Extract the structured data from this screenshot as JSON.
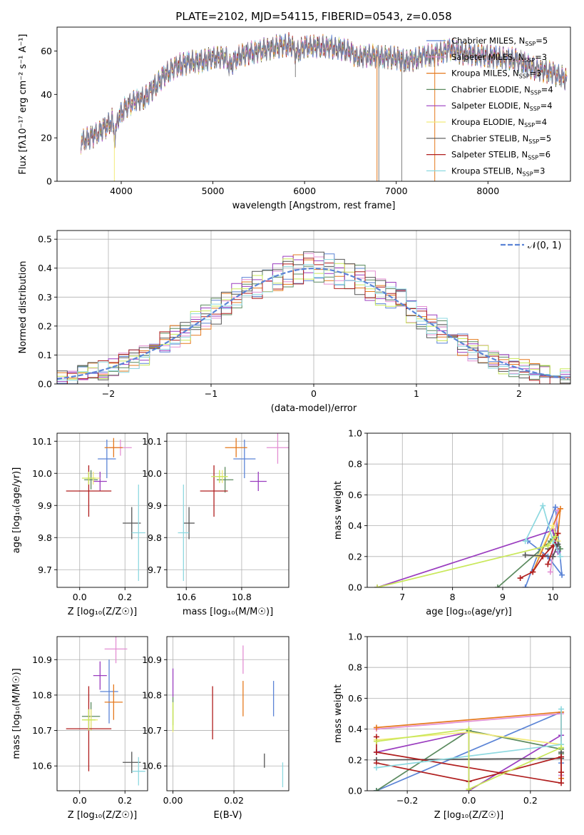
{
  "title": "PLATE=2102, MJD=54115, FIBERID=0543, z=0.058",
  "colors": [
    "#5b84d6",
    "#e38fd3",
    "#e5791d",
    "#5b8a5f",
    "#9a3cbf",
    "#f2ea7a",
    "#555555",
    "#b01e1e",
    "#8ed9e0",
    "#c9e85a"
  ],
  "legend": [
    {
      "model": "Chabrier MILES",
      "n": "5",
      "color": "#5b84d6"
    },
    {
      "model": "Salpeter MILES",
      "n": "3",
      "color": "#e38fd3"
    },
    {
      "model": "Kroupa MILES",
      "n": "3",
      "color": "#e5791d"
    },
    {
      "model": "Chabrier ELODIE",
      "n": "4",
      "color": "#5b8a5f"
    },
    {
      "model": "Salpeter ELODIE",
      "n": "4",
      "color": "#9a3cbf"
    },
    {
      "model": "Kroupa ELODIE",
      "n": "4",
      "color": "#f2ea7a"
    },
    {
      "model": "Chabrier STELIB",
      "n": "5",
      "color": "#555555"
    },
    {
      "model": "Salpeter STELIB",
      "n": "6",
      "color": "#b01e1e"
    },
    {
      "model": "Kroupa STELIB",
      "n": "3",
      "color": "#8ed9e0"
    }
  ],
  "chart_data": [
    {
      "type": "line",
      "xlabel": "wavelength [Angstrom, rest frame]",
      "ylabel": "Flux [fλ10⁻¹⁷ erg cm⁻² s⁻¹ A⁻¹]",
      "xlim": [
        3300,
        8900
      ],
      "ylim": [
        0,
        71
      ],
      "xticks": [
        4000,
        5000,
        6000,
        7000,
        8000
      ],
      "yticks": [
        0,
        20,
        40,
        60
      ],
      "continuum": [
        [
          3560,
          18
        ],
        [
          3700,
          21
        ],
        [
          3800,
          24
        ],
        [
          3900,
          28
        ],
        [
          3930,
          20
        ],
        [
          3970,
          30
        ],
        [
          4050,
          34
        ],
        [
          4150,
          37
        ],
        [
          4250,
          38
        ],
        [
          4350,
          43
        ],
        [
          4500,
          50
        ],
        [
          4600,
          53
        ],
        [
          4750,
          55
        ],
        [
          4850,
          55
        ],
        [
          5000,
          57
        ],
        [
          5150,
          57
        ],
        [
          5180,
          53
        ],
        [
          5300,
          58
        ],
        [
          5500,
          60
        ],
        [
          5700,
          62
        ],
        [
          5850,
          63
        ],
        [
          5900,
          59
        ],
        [
          6000,
          62
        ],
        [
          6200,
          62
        ],
        [
          6400,
          61
        ],
        [
          6500,
          60
        ],
        [
          6560,
          57
        ],
        [
          6700,
          58
        ],
        [
          6900,
          57
        ],
        [
          7000,
          57
        ],
        [
          7100,
          55
        ],
        [
          7200,
          56
        ],
        [
          7300,
          58
        ],
        [
          7400,
          58
        ],
        [
          7600,
          61
        ],
        [
          7700,
          59
        ],
        [
          7900,
          58
        ],
        [
          8100,
          57
        ],
        [
          8300,
          56
        ],
        [
          8500,
          52
        ],
        [
          8700,
          50
        ],
        [
          8860,
          47
        ]
      ]
    },
    {
      "type": "line",
      "xlabel": "(data-model)/error",
      "ylabel": "Normed distribution",
      "xlim": [
        -2.5,
        2.5
      ],
      "ylim": [
        0,
        0.53
      ],
      "xticks": [
        -2,
        -1,
        0,
        1,
        2
      ],
      "yticks": [
        0.0,
        0.1,
        0.2,
        0.3,
        0.4,
        0.5
      ],
      "gaussian_label": "𝒩(0, 1)"
    },
    {
      "type": "scatter",
      "xlabel": "Z [log₁₀(Z/Z☉)]",
      "ylabel": "age  [log₁₀(age/yr)]",
      "xlim": [
        -0.1,
        0.3
      ],
      "ylim": [
        9.645,
        10.125
      ],
      "xticks": [
        0.0,
        0.2
      ],
      "yticks": [
        9.7,
        9.8,
        9.9,
        10.0,
        10.1
      ],
      "points": [
        {
          "x": 0.12,
          "y": 10.045,
          "xerr": 0.04,
          "yerr": 0.06,
          "color": "#5b84d6"
        },
        {
          "x": 0.18,
          "y": 10.08,
          "xerr": 0.05,
          "yerr": 0.025,
          "color": "#e38fd3"
        },
        {
          "x": 0.15,
          "y": 10.08,
          "xerr": 0.04,
          "yerr": 0.03,
          "color": "#e5791d"
        },
        {
          "x": 0.05,
          "y": 9.98,
          "xerr": 0.03,
          "yerr": 0.03,
          "color": "#5b8a5f"
        },
        {
          "x": 0.09,
          "y": 9.975,
          "xerr": 0.03,
          "yerr": 0.03,
          "color": "#9a3cbf"
        },
        {
          "x": 0.06,
          "y": 9.985,
          "xerr": 0.03,
          "yerr": 0.02,
          "color": "#f2ea7a"
        },
        {
          "x": 0.23,
          "y": 9.845,
          "xerr": 0.04,
          "yerr": 0.05,
          "color": "#555555"
        },
        {
          "x": 0.04,
          "y": 9.945,
          "xerr": 0.1,
          "yerr": 0.08,
          "color": "#b01e1e"
        },
        {
          "x": 0.26,
          "y": 9.815,
          "xerr": 0.03,
          "yerr": 0.15,
          "color": "#8ed9e0"
        },
        {
          "x": 0.04,
          "y": 9.985,
          "xerr": 0.03,
          "yerr": 0.02,
          "color": "#c9e85a"
        }
      ]
    },
    {
      "type": "scatter",
      "xlabel": "mass [log₁₀(M/M☉)]",
      "ylabel": "",
      "xlim": [
        10.53,
        10.97
      ],
      "ylim": [
        9.645,
        10.125
      ],
      "xticks": [
        10.6,
        10.8
      ],
      "yticks": [
        9.7,
        9.8,
        9.9,
        10.0,
        10.1
      ],
      "points": [
        {
          "x": 10.81,
          "y": 10.045,
          "xerr": 0.04,
          "yerr": 0.06,
          "color": "#5b84d6"
        },
        {
          "x": 10.93,
          "y": 10.08,
          "xerr": 0.04,
          "yerr": 0.05,
          "color": "#e38fd3"
        },
        {
          "x": 10.78,
          "y": 10.08,
          "xerr": 0.04,
          "yerr": 0.03,
          "color": "#e5791d"
        },
        {
          "x": 10.74,
          "y": 9.98,
          "xerr": 0.03,
          "yerr": 0.04,
          "color": "#5b8a5f"
        },
        {
          "x": 10.86,
          "y": 9.975,
          "xerr": 0.03,
          "yerr": 0.03,
          "color": "#9a3cbf"
        },
        {
          "x": 10.73,
          "y": 9.99,
          "xerr": 0.02,
          "yerr": 0.02,
          "color": "#f2ea7a"
        },
        {
          "x": 10.61,
          "y": 9.845,
          "xerr": 0.02,
          "yerr": 0.05,
          "color": "#555555"
        },
        {
          "x": 10.7,
          "y": 9.945,
          "xerr": 0.05,
          "yerr": 0.08,
          "color": "#b01e1e"
        },
        {
          "x": 10.59,
          "y": 9.815,
          "xerr": 0.02,
          "yerr": 0.15,
          "color": "#8ed9e0"
        },
        {
          "x": 10.72,
          "y": 9.99,
          "xerr": 0.03,
          "yerr": 0.02,
          "color": "#c9e85a"
        }
      ]
    },
    {
      "type": "line",
      "xlabel": "age  [log₁₀(age/yr)]",
      "ylabel": "mass weight",
      "xlim": [
        6.3,
        10.35
      ],
      "ylim": [
        0,
        1
      ],
      "xticks": [
        7,
        8,
        9,
        10
      ],
      "yticks": [
        0.0,
        0.2,
        0.4,
        0.6,
        0.8,
        1.0
      ],
      "series": [
        {
          "color": "#5b84d6",
          "points": [
            [
              9.45,
              0.0
            ],
            [
              10.05,
              0.52
            ],
            [
              10.18,
              0.08
            ],
            [
              9.9,
              0.2
            ],
            [
              9.5,
              0.3
            ]
          ]
        },
        {
          "color": "#e38fd3",
          "points": [
            [
              9.95,
              0.1
            ],
            [
              10.1,
              0.5
            ],
            [
              10.0,
              0.38
            ]
          ]
        },
        {
          "color": "#e5791d",
          "points": [
            [
              9.6,
              0.1
            ],
            [
              10.15,
              0.51
            ],
            [
              10.1,
              0.35
            ]
          ]
        },
        {
          "color": "#5b8a5f",
          "points": [
            [
              8.9,
              0.0
            ],
            [
              9.95,
              0.3
            ],
            [
              10.05,
              0.35
            ],
            [
              10.15,
              0.25
            ]
          ]
        },
        {
          "color": "#9a3cbf",
          "points": [
            [
              6.5,
              0.0
            ],
            [
              10.0,
              0.37
            ],
            [
              10.1,
              0.23
            ]
          ]
        },
        {
          "color": "#f2ea7a",
          "points": [
            [
              9.7,
              0.2
            ],
            [
              10.0,
              0.4
            ],
            [
              10.1,
              0.3
            ]
          ]
        },
        {
          "color": "#555555",
          "points": [
            [
              9.45,
              0.21
            ],
            [
              10.0,
              0.2
            ],
            [
              10.1,
              0.28
            ],
            [
              9.9,
              0.25
            ]
          ]
        },
        {
          "color": "#b01e1e",
          "points": [
            [
              9.35,
              0.06
            ],
            [
              9.6,
              0.1
            ],
            [
              9.8,
              0.2
            ],
            [
              10.0,
              0.27
            ],
            [
              10.1,
              0.35
            ],
            [
              9.9,
              0.15
            ]
          ]
        },
        {
          "color": "#8ed9e0",
          "points": [
            [
              9.45,
              0.3
            ],
            [
              9.8,
              0.53
            ],
            [
              10.0,
              0.3
            ],
            [
              10.15,
              0.2
            ]
          ]
        },
        {
          "color": "#c9e85a",
          "points": [
            [
              6.5,
              0.0
            ],
            [
              9.9,
              0.27
            ],
            [
              10.05,
              0.33
            ]
          ]
        }
      ]
    },
    {
      "type": "scatter",
      "xlabel": "Z [log₁₀(Z/Z☉)]",
      "ylabel": "mass [log₁₀(M/M☉)]",
      "xlim": [
        -0.1,
        0.3
      ],
      "ylim": [
        10.53,
        10.965
      ],
      "xticks": [
        0.0,
        0.2
      ],
      "yticks": [
        10.6,
        10.7,
        10.8,
        10.9
      ],
      "points": [
        {
          "x": 0.13,
          "y": 10.81,
          "xerr": 0.04,
          "yerr": 0.09,
          "color": "#5b84d6"
        },
        {
          "x": 0.16,
          "y": 10.93,
          "xerr": 0.05,
          "yerr": 0.04,
          "color": "#e38fd3"
        },
        {
          "x": 0.15,
          "y": 10.78,
          "xerr": 0.04,
          "yerr": 0.05,
          "color": "#e5791d"
        },
        {
          "x": 0.05,
          "y": 10.74,
          "xerr": 0.04,
          "yerr": 0.04,
          "color": "#5b8a5f"
        },
        {
          "x": 0.09,
          "y": 10.855,
          "xerr": 0.03,
          "yerr": 0.04,
          "color": "#9a3cbf"
        },
        {
          "x": 0.05,
          "y": 10.73,
          "xerr": 0.03,
          "yerr": 0.03,
          "color": "#f2ea7a"
        },
        {
          "x": 0.23,
          "y": 10.61,
          "xerr": 0.04,
          "yerr": 0.03,
          "color": "#555555"
        },
        {
          "x": 0.04,
          "y": 10.705,
          "xerr": 0.1,
          "yerr": 0.12,
          "color": "#b01e1e"
        },
        {
          "x": 0.26,
          "y": 10.585,
          "xerr": 0.03,
          "yerr": 0.04,
          "color": "#8ed9e0"
        },
        {
          "x": 0.04,
          "y": 10.73,
          "xerr": 0.03,
          "yerr": 0.03,
          "color": "#c9e85a"
        }
      ]
    },
    {
      "type": "scatter",
      "xlabel": "E(B-V)",
      "ylabel": "",
      "xlim": [
        -0.002,
        0.038
      ],
      "ylim": [
        10.53,
        10.965
      ],
      "xticks": [
        0.0,
        0.02
      ],
      "yticks": [
        10.6,
        10.7,
        10.8,
        10.9
      ],
      "points": [
        {
          "x": 0.033,
          "y": 10.79,
          "yerr": 0.05,
          "color": "#5b84d6"
        },
        {
          "x": 0.023,
          "y": 10.9,
          "yerr": 0.04,
          "color": "#e38fd3"
        },
        {
          "x": 0.023,
          "y": 10.79,
          "yerr": 0.05,
          "color": "#e5791d"
        },
        {
          "x": 0.0,
          "y": 10.755,
          "yerr": 0.04,
          "color": "#5b8a5f"
        },
        {
          "x": 0.0,
          "y": 10.835,
          "yerr": 0.04,
          "color": "#9a3cbf"
        },
        {
          "x": 0.0,
          "y": 10.735,
          "yerr": 0.04,
          "color": "#f2ea7a"
        },
        {
          "x": 0.03,
          "y": 10.615,
          "yerr": 0.02,
          "color": "#555555"
        },
        {
          "x": 0.013,
          "y": 10.75,
          "yerr": 0.075,
          "color": "#b01e1e"
        },
        {
          "x": 0.036,
          "y": 10.575,
          "yerr": 0.035,
          "color": "#8ed9e0"
        },
        {
          "x": 0.0,
          "y": 10.74,
          "yerr": 0.04,
          "color": "#c9e85a"
        }
      ]
    },
    {
      "type": "line",
      "xlabel": "Z [log₁₀(Z/Z☉)]",
      "ylabel": "mass weight",
      "xlim": [
        -0.33,
        0.33
      ],
      "ylim": [
        0,
        1
      ],
      "xticks": [
        -0.2,
        0.0,
        0.2
      ],
      "yticks": [
        0.0,
        0.2,
        0.4,
        0.6,
        0.8,
        1.0
      ],
      "series": [
        {
          "color": "#5b84d6",
          "points": [
            [
              -0.3,
              0.0
            ],
            [
              0.3,
              0.51
            ],
            [
              0.3,
              0.18
            ],
            [
              0.3,
              0.1
            ]
          ]
        },
        {
          "color": "#e38fd3",
          "points": [
            [
              -0.3,
              0.4
            ],
            [
              0.3,
              0.5
            ],
            [
              0.3,
              0.1
            ]
          ]
        },
        {
          "color": "#e5791d",
          "points": [
            [
              -0.3,
              0.41
            ],
            [
              0.3,
              0.51
            ],
            [
              0.3,
              0.08
            ]
          ]
        },
        {
          "color": "#5b8a5f",
          "points": [
            [
              -0.3,
              0.0
            ],
            [
              0.0,
              0.39
            ],
            [
              0.3,
              0.27
            ],
            [
              0.3,
              0.24
            ]
          ]
        },
        {
          "color": "#9a3cbf",
          "points": [
            [
              -0.3,
              0.25
            ],
            [
              0.0,
              0.38
            ],
            [
              0.0,
              0.0
            ],
            [
              0.3,
              0.36
            ]
          ]
        },
        {
          "color": "#f2ea7a",
          "points": [
            [
              -0.3,
              0.33
            ],
            [
              0.0,
              0.38
            ],
            [
              0.3,
              0.3
            ]
          ]
        },
        {
          "color": "#555555",
          "points": [
            [
              -0.3,
              0.2
            ],
            [
              0.3,
              0.21
            ],
            [
              0.3,
              0.25
            ]
          ]
        },
        {
          "color": "#b01e1e",
          "points": [
            [
              -0.3,
              0.18
            ],
            [
              0.0,
              0.06
            ],
            [
              0.3,
              0.22
            ],
            [
              0.3,
              0.12
            ],
            [
              0.3,
              0.05
            ],
            [
              -0.3,
              0.25
            ],
            [
              -0.3,
              0.35
            ]
          ]
        },
        {
          "color": "#8ed9e0",
          "points": [
            [
              -0.3,
              0.15
            ],
            [
              0.3,
              0.3
            ],
            [
              0.3,
              0.53
            ]
          ]
        },
        {
          "color": "#c9e85a",
          "points": [
            [
              -0.3,
              0.32
            ],
            [
              0.0,
              0.4
            ],
            [
              0.0,
              0.01
            ],
            [
              0.3,
              0.28
            ]
          ]
        }
      ]
    }
  ]
}
